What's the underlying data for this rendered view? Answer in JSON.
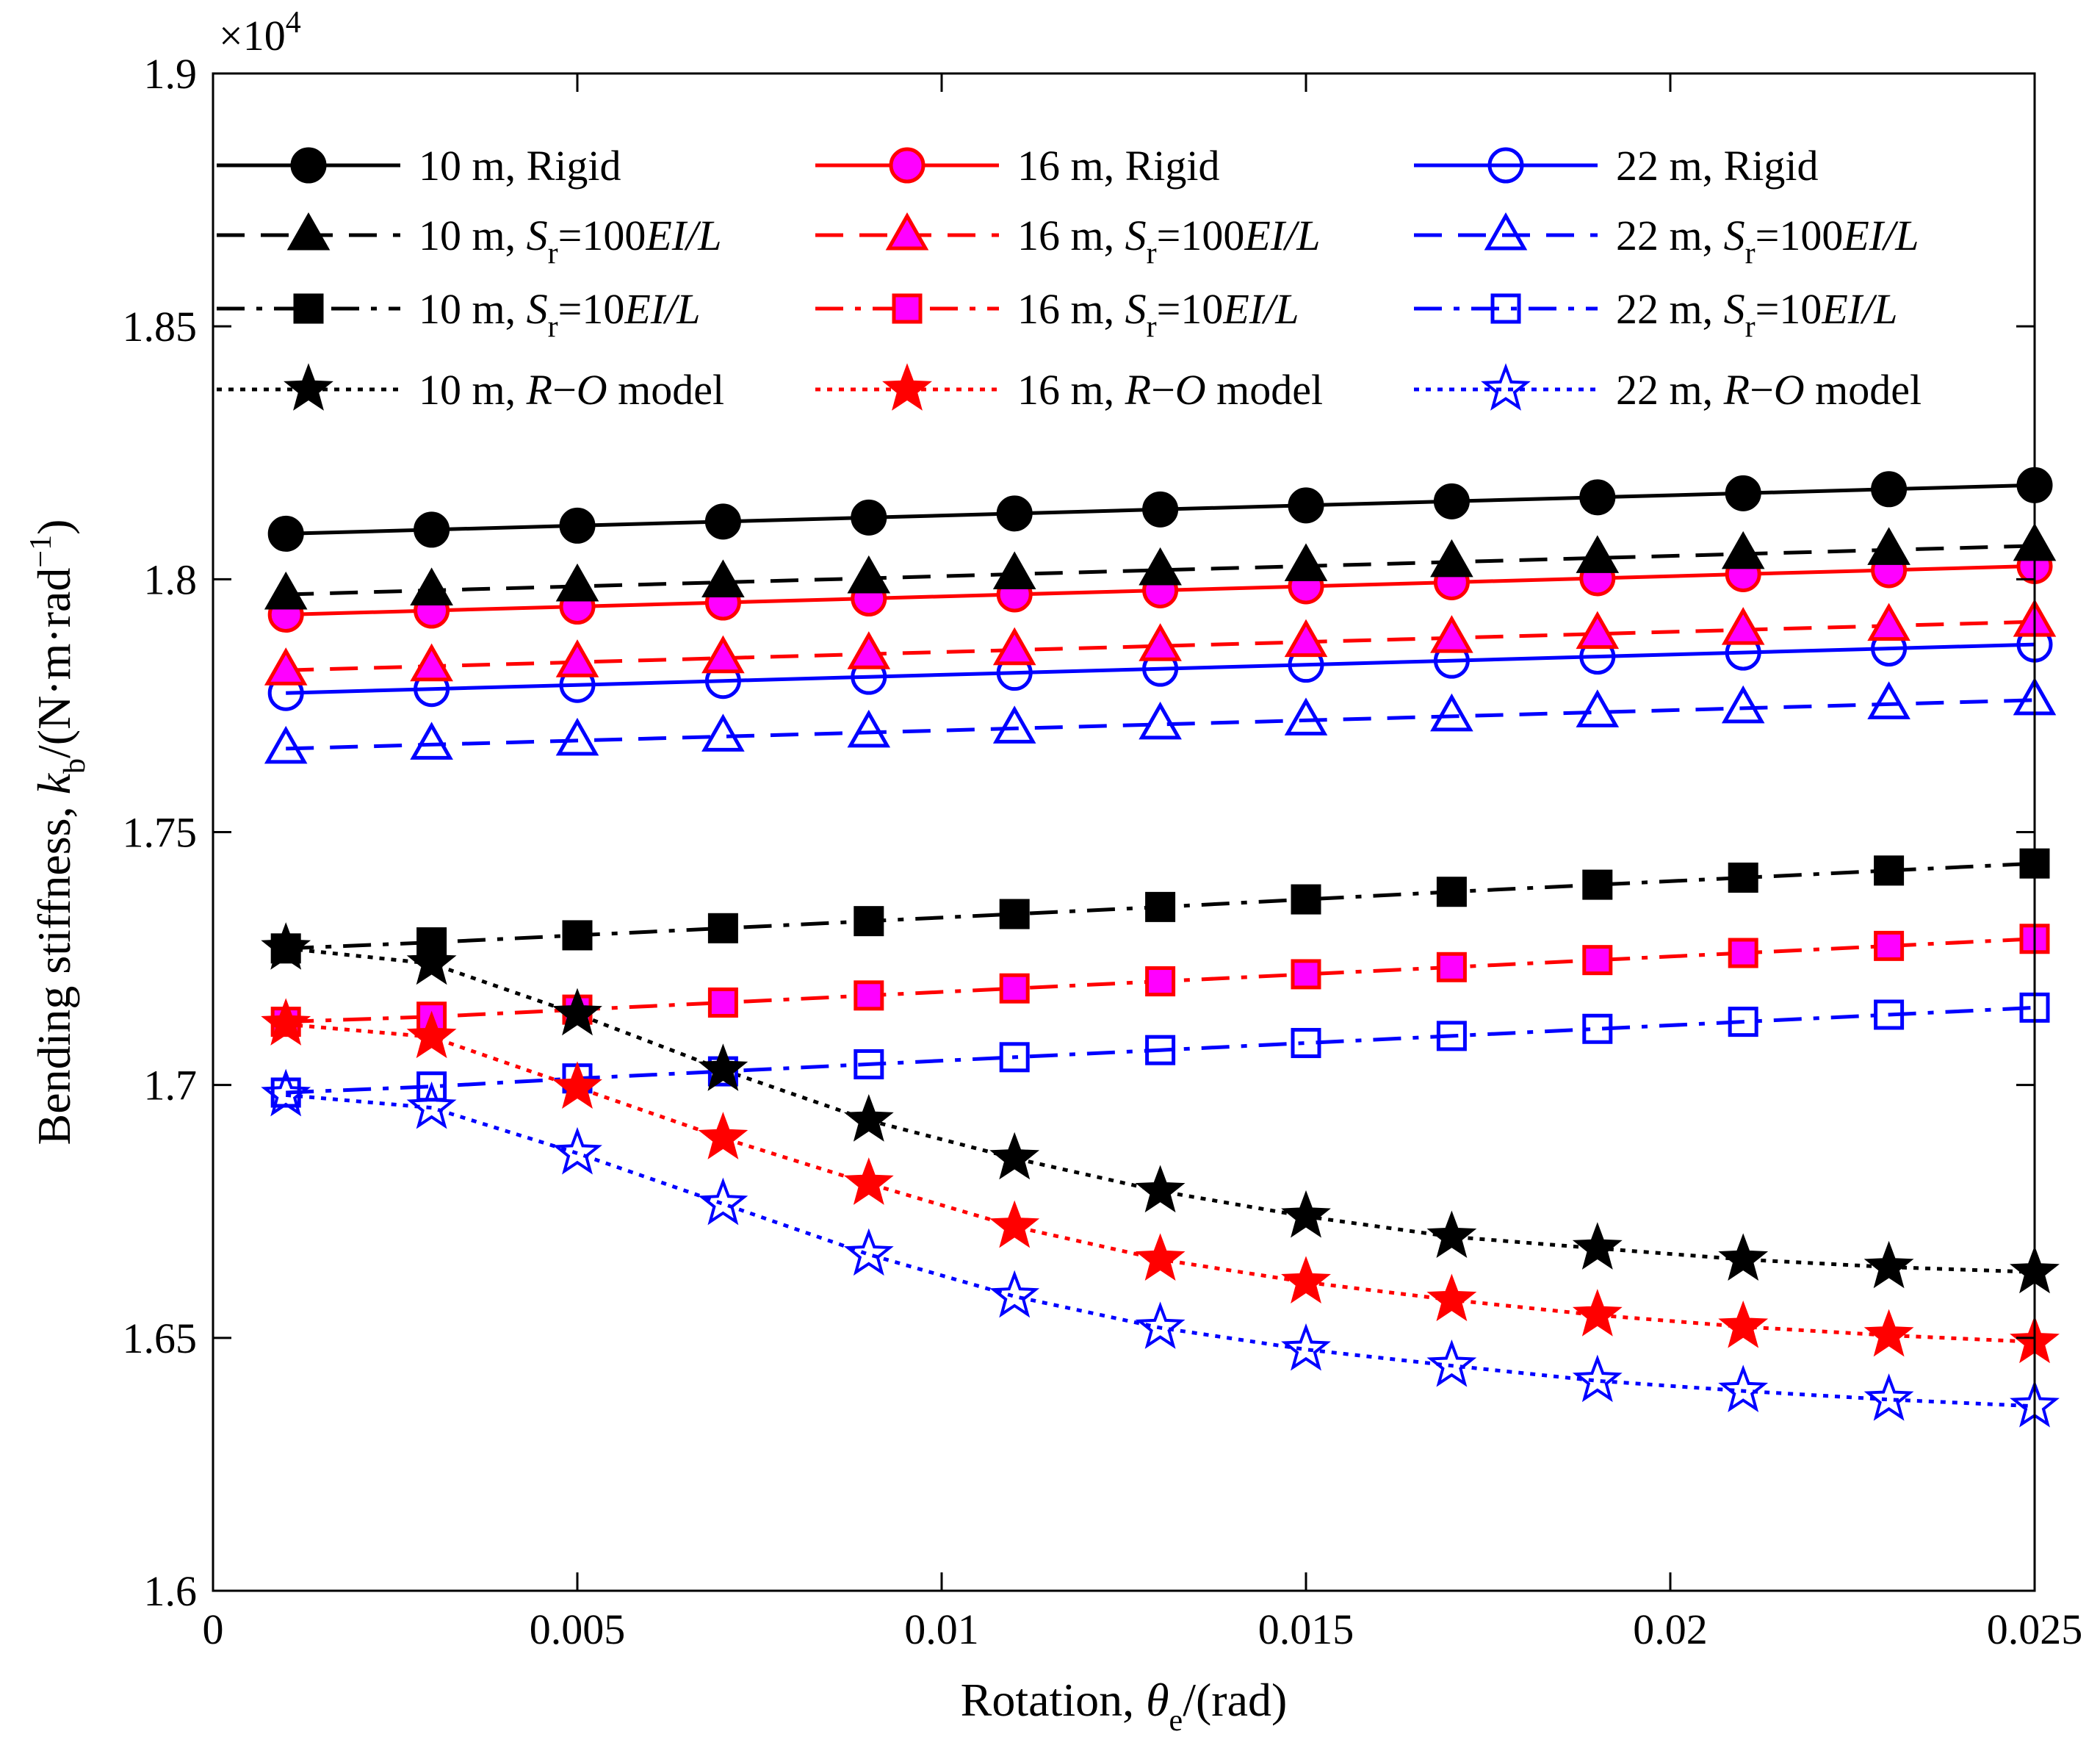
{
  "chart_data": {
    "type": "line",
    "xlabel": {
      "prefix": "Rotation, ",
      "symbol": "θ",
      "subscript": "e",
      "suffix": "/(rad)"
    },
    "ylabel": {
      "prefix": "Bending stiffness, ",
      "symbol": "k",
      "subscript": "b",
      "suffix": "/(N·m·rad",
      "superscript": "−1",
      "end": ")"
    },
    "xlim": [
      0,
      0.025
    ],
    "ylim": [
      16000,
      19000
    ],
    "x_ticks": [
      0,
      0.005,
      0.01,
      0.015,
      0.02,
      0.025
    ],
    "x_tick_labels": [
      "0",
      "0.005",
      "0.01",
      "0.015",
      "0.02",
      "0.025"
    ],
    "y_ticks": [
      16000,
      16500,
      17000,
      17500,
      18000,
      18500,
      19000
    ],
    "y_tick_labels": [
      "1.6",
      "1.65",
      "1.7",
      "1.75",
      "1.8",
      "1.85",
      "1.9"
    ],
    "y_exponent": {
      "base": "×10",
      "power": "4"
    },
    "grid": false,
    "legend_position": "top",
    "x": [
      0.001,
      0.003,
      0.005,
      0.007,
      0.009,
      0.011,
      0.013,
      0.015,
      0.017,
      0.019,
      0.021,
      0.023,
      0.025
    ],
    "colors": {
      "black": "#000000",
      "red": "#ff0000",
      "blue": "#0000ff",
      "magenta": "#ff00ff"
    },
    "series": [
      {
        "name": "10 m, Rigid",
        "label_prefix": "10 m, ",
        "label_rest": "Rigid",
        "label_type": "plain",
        "color": "#000000",
        "line": "solid",
        "marker": "circle",
        "fill": "#000000",
        "values": [
          18090,
          18098,
          18106,
          18114,
          18122,
          18130,
          18138,
          18146,
          18154,
          18162,
          18170,
          18178,
          18186
        ]
      },
      {
        "name": "16 m, Rigid",
        "label_prefix": "16 m, ",
        "label_rest": "Rigid",
        "label_type": "plain",
        "color": "#ff0000",
        "line": "solid",
        "marker": "circle",
        "fill": "#ff00ff",
        "values": [
          17930,
          17938,
          17946,
          17954,
          17962,
          17970,
          17978,
          17986,
          17994,
          18002,
          18010,
          18018,
          18026
        ]
      },
      {
        "name": "22 m, Rigid",
        "label_prefix": "22 m, ",
        "label_rest": "Rigid",
        "label_type": "plain",
        "color": "#0000ff",
        "line": "solid",
        "marker": "circle",
        "fill": "none",
        "values": [
          17775,
          17783,
          17791,
          17799,
          17807,
          17815,
          17823,
          17831,
          17839,
          17847,
          17855,
          17863,
          17871
        ]
      },
      {
        "name": "10 m, Sr=100EI/L",
        "label_prefix": "10 m, ",
        "label_rest": "=100",
        "label_type": "sr",
        "color": "#000000",
        "line": "dashed",
        "marker": "triangle",
        "fill": "#000000",
        "values": [
          17970,
          17978,
          17986,
          17994,
          18002,
          18010,
          18018,
          18026,
          18034,
          18042,
          18050,
          18058,
          18066
        ]
      },
      {
        "name": "16 m, Sr=100EI/L",
        "label_prefix": "16 m, ",
        "label_rest": "=100",
        "label_type": "sr",
        "color": "#ff0000",
        "line": "dashed",
        "marker": "triangle",
        "fill": "#ff00ff",
        "values": [
          17820,
          17828,
          17836,
          17844,
          17852,
          17860,
          17868,
          17876,
          17884,
          17892,
          17900,
          17908,
          17916
        ]
      },
      {
        "name": "22 m, Sr=100EI/L",
        "label_prefix": "22 m, ",
        "label_rest": "=100",
        "label_type": "sr",
        "color": "#0000ff",
        "line": "dashed",
        "marker": "triangle",
        "fill": "none",
        "values": [
          17665,
          17673,
          17681,
          17689,
          17697,
          17705,
          17713,
          17721,
          17729,
          17737,
          17745,
          17753,
          17761
        ]
      },
      {
        "name": "10 m, Sr=10EI/L",
        "label_prefix": "10 m, ",
        "label_rest": "=10",
        "label_type": "sr",
        "color": "#000000",
        "line": "dashdot",
        "marker": "square",
        "fill": "#000000",
        "values": [
          17270,
          17282,
          17296,
          17310,
          17324,
          17338,
          17352,
          17367,
          17382,
          17396,
          17410,
          17424,
          17438
        ]
      },
      {
        "name": "16 m, Sr=10EI/L",
        "label_prefix": "16 m, ",
        "label_rest": "=10",
        "label_type": "sr",
        "color": "#ff0000",
        "line": "dashdot",
        "marker": "square",
        "fill": "#ff00ff",
        "values": [
          17125,
          17135,
          17149,
          17163,
          17177,
          17191,
          17205,
          17219,
          17233,
          17247,
          17261,
          17275,
          17289
        ]
      },
      {
        "name": "22 m, Sr=10EI/L",
        "label_prefix": "22 m, ",
        "label_rest": "=10",
        "label_type": "sr",
        "color": "#0000ff",
        "line": "dashdot",
        "marker": "square",
        "fill": "none",
        "values": [
          16985,
          16997,
          17013,
          17027,
          17041,
          17055,
          17069,
          17083,
          17097,
          17111,
          17125,
          17139,
          17153
        ]
      },
      {
        "name": "10 m, R−O model",
        "label_prefix": "10 m, ",
        "label_rest": "model",
        "label_type": "ro",
        "color": "#000000",
        "line": "dotted",
        "marker": "star",
        "fill": "#000000",
        "values": [
          17270,
          17240,
          17140,
          17030,
          16930,
          16855,
          16790,
          16740,
          16700,
          16677,
          16655,
          16640,
          16630
        ]
      },
      {
        "name": "16 m, R−O model",
        "label_prefix": "16 m, ",
        "label_rest": "model",
        "label_type": "ro",
        "color": "#ff0000",
        "line": "dotted",
        "marker": "star",
        "fill": "#ff0000",
        "values": [
          17120,
          17095,
          16995,
          16895,
          16805,
          16720,
          16655,
          16610,
          16575,
          16545,
          16522,
          16505,
          16492
        ]
      },
      {
        "name": "22 m, R−O model",
        "label_prefix": "22 m, ",
        "label_rest": "model",
        "label_type": "ro",
        "color": "#0000ff",
        "line": "dotted",
        "marker": "star",
        "fill": "none",
        "values": [
          16980,
          16955,
          16865,
          16765,
          16665,
          16582,
          16520,
          16477,
          16445,
          16415,
          16395,
          16378,
          16365
        ]
      }
    ],
    "legend_common": {
      "sr_symbol": "S",
      "sr_sub": "r",
      "sr_tail": "EI/L",
      "ro_symbol_r": "R",
      "ro_dash": "−",
      "ro_symbol_o": "O"
    }
  }
}
